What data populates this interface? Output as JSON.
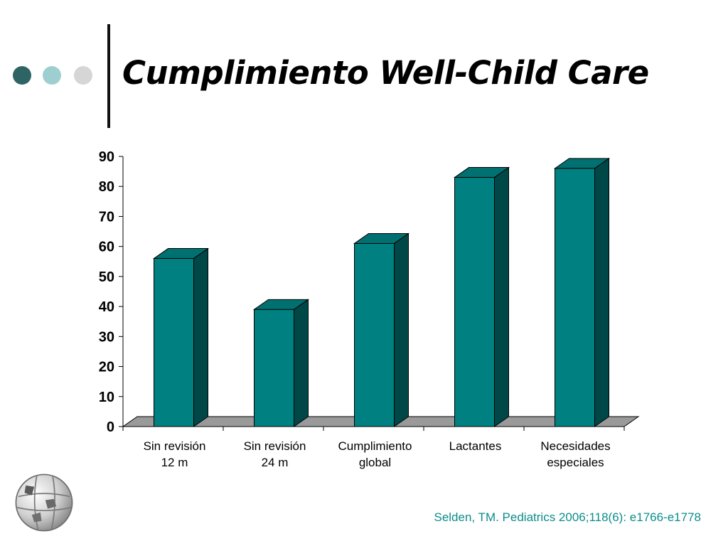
{
  "slide": {
    "title": "Cumplimiento Well-Child Care",
    "citation": "Selden, TM. Pediatrics 2006;118(6): e1766-e1778",
    "decoration": {
      "dot_colors": [
        "#2f6465",
        "#9ecfd0",
        "#d6d6d6"
      ],
      "logo_icon": "wikipedia-globe-icon"
    }
  },
  "chart_data": {
    "type": "bar",
    "style": "3d",
    "categories": [
      [
        "Sin revisión",
        "12 m"
      ],
      [
        "Sin revisión",
        "24 m"
      ],
      [
        "Cumplimiento",
        "global"
      ],
      [
        "Lactantes"
      ],
      [
        "Necesidades",
        "especiales"
      ]
    ],
    "values": [
      56,
      39,
      61,
      83,
      86
    ],
    "yticks": [
      0,
      10,
      20,
      30,
      40,
      50,
      60,
      70,
      80,
      90
    ],
    "ylim": [
      0,
      90
    ],
    "grid": false,
    "legend": "none",
    "colors": {
      "bar_front": "#008080",
      "bar_side": "#004848",
      "bar_top": "#007070",
      "floor": "#9a9a9a"
    }
  }
}
